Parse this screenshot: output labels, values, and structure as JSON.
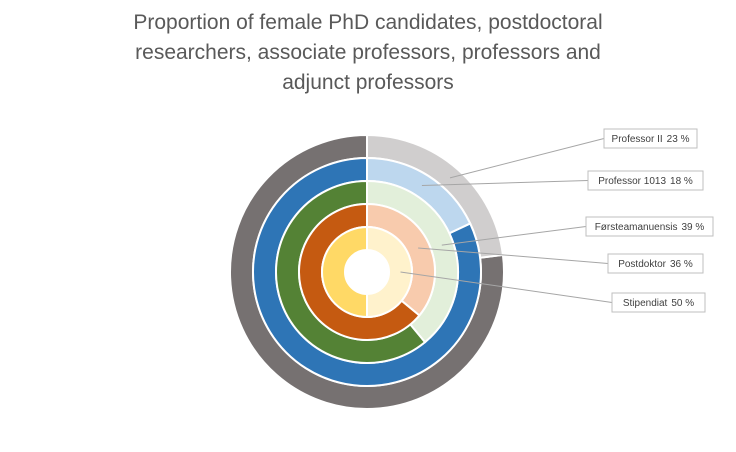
{
  "chart_data": {
    "type": "donut",
    "title": "Proportion of female PhD candidates, postdoctoral researchers, associate professors, professors and adjunct professors",
    "series": [
      {
        "name": "Professor II",
        "color": "#d0cece",
        "rest_color": "#767171",
        "values": [
          23
        ],
        "value_labels": [
          "23 %"
        ]
      },
      {
        "name": "Professor 1013",
        "color": "#bdd7ee",
        "rest_color": "#2e75b6",
        "values": [
          18
        ],
        "value_labels": [
          "18 %"
        ]
      },
      {
        "name": "Førsteamanuensis",
        "color": "#e2efda",
        "rest_color": "#548235",
        "values": [
          39
        ],
        "value_labels": [
          "39 %"
        ]
      },
      {
        "name": "Postdoktor",
        "color": "#f8cbad",
        "rest_color": "#c55a11",
        "values": [
          36
        ],
        "value_labels": [
          "36 %"
        ]
      },
      {
        "name": "Stipendiat",
        "color": "#fff2cc",
        "rest_color": "#ffd966",
        "values": [
          50
        ],
        "value_labels": [
          "50 %"
        ]
      }
    ]
  }
}
